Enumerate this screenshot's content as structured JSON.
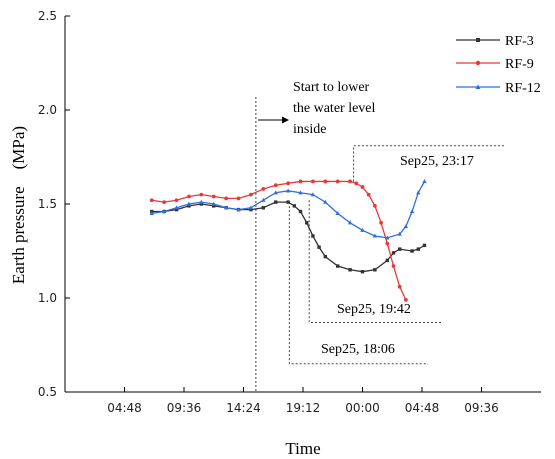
{
  "chart_data": {
    "type": "line",
    "title": "",
    "xlabel": "Time",
    "ylabel": "Earth pressure　(MPa)",
    "ylim": [
      0.5,
      2.5
    ],
    "xlim_hours": [
      0,
      38.4
    ],
    "x_ticks": [
      {
        "label": "04:48",
        "hours": 4.8
      },
      {
        "label": "09:36",
        "hours": 9.6
      },
      {
        "label": "14:24",
        "hours": 14.4
      },
      {
        "label": "19:12",
        "hours": 19.2
      },
      {
        "label": "00:00",
        "hours": 24.0
      },
      {
        "label": "04:48",
        "hours": 28.8
      },
      {
        "label": "09:36",
        "hours": 33.6
      }
    ],
    "y_ticks": [
      "0.5",
      "1.0",
      "1.5",
      "2.0",
      "2.5"
    ],
    "grid": false,
    "legend_position": "top-right",
    "series": [
      {
        "name": "RF-3",
        "color": "#333333",
        "marker": "square",
        "x": [
          7.0,
          8.0,
          9.0,
          10.0,
          11.0,
          12.0,
          13.0,
          14.0,
          15.0,
          16.0,
          17.0,
          18.0,
          18.5,
          19.0,
          19.5,
          20.0,
          20.5,
          21.0,
          22.0,
          23.0,
          24.0,
          25.0,
          26.0,
          26.5,
          27.0,
          28.0,
          28.5,
          29.0
        ],
        "values": [
          1.46,
          1.46,
          1.47,
          1.49,
          1.5,
          1.49,
          1.48,
          1.47,
          1.47,
          1.48,
          1.51,
          1.51,
          1.49,
          1.46,
          1.4,
          1.33,
          1.27,
          1.22,
          1.17,
          1.15,
          1.14,
          1.15,
          1.2,
          1.24,
          1.26,
          1.25,
          1.26,
          1.28
        ]
      },
      {
        "name": "RF-9",
        "color": "#e8393a",
        "marker": "circle",
        "x": [
          7.0,
          8.0,
          9.0,
          10.0,
          11.0,
          12.0,
          13.0,
          14.0,
          15.0,
          16.0,
          17.0,
          18.0,
          19.0,
          20.0,
          21.0,
          22.0,
          23.0,
          23.5,
          24.0,
          24.5,
          25.0,
          25.5,
          26.0,
          26.5,
          27.0,
          27.5
        ],
        "values": [
          1.52,
          1.51,
          1.52,
          1.54,
          1.55,
          1.54,
          1.53,
          1.53,
          1.55,
          1.58,
          1.6,
          1.61,
          1.62,
          1.62,
          1.62,
          1.62,
          1.62,
          1.61,
          1.59,
          1.55,
          1.49,
          1.4,
          1.29,
          1.17,
          1.06,
          0.99
        ]
      },
      {
        "name": "RF-12",
        "color": "#2e6fdb",
        "marker": "triangle",
        "x": [
          7.0,
          8.0,
          9.0,
          10.0,
          11.0,
          12.0,
          13.0,
          14.0,
          15.0,
          16.0,
          17.0,
          18.0,
          19.0,
          20.0,
          21.0,
          22.0,
          23.0,
          24.0,
          25.0,
          26.0,
          27.0,
          27.5,
          28.0,
          28.5,
          29.0
        ],
        "values": [
          1.45,
          1.46,
          1.48,
          1.5,
          1.51,
          1.5,
          1.48,
          1.47,
          1.48,
          1.52,
          1.56,
          1.57,
          1.56,
          1.55,
          1.51,
          1.45,
          1.4,
          1.36,
          1.33,
          1.32,
          1.34,
          1.38,
          1.46,
          1.56,
          1.62
        ]
      }
    ],
    "annotations": {
      "start_lower": {
        "text": "Start to lower the water level inside",
        "line1": "Start to lower",
        "line2": "the water level",
        "line3": "inside",
        "x_hours": 15.4
      },
      "sep25_2317": {
        "text": "Sep25, 23:17",
        "x_hours": 23.28,
        "y": 1.81
      },
      "sep25_1942": {
        "text": "Sep25, 19:42",
        "x_hours": 19.7,
        "y": 0.87
      },
      "sep25_1806": {
        "text": "Sep25, 18:06",
        "x_hours": 18.1,
        "y": 0.65
      }
    }
  }
}
